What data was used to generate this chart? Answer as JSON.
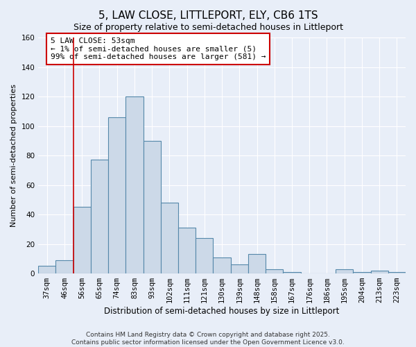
{
  "title": "5, LAW CLOSE, LITTLEPORT, ELY, CB6 1TS",
  "subtitle": "Size of property relative to semi-detached houses in Littleport",
  "xlabel": "Distribution of semi-detached houses by size in Littleport",
  "ylabel": "Number of semi-detached properties",
  "categories": [
    "37sqm",
    "46sqm",
    "56sqm",
    "65sqm",
    "74sqm",
    "83sqm",
    "93sqm",
    "102sqm",
    "111sqm",
    "121sqm",
    "130sqm",
    "139sqm",
    "148sqm",
    "158sqm",
    "167sqm",
    "176sqm",
    "186sqm",
    "195sqm",
    "204sqm",
    "213sqm",
    "223sqm"
  ],
  "values": [
    5,
    9,
    45,
    77,
    106,
    120,
    90,
    48,
    31,
    24,
    11,
    6,
    13,
    3,
    1,
    0,
    0,
    3,
    1,
    2,
    1
  ],
  "bar_color": "#ccd9e8",
  "bar_edge_color": "#5588aa",
  "vline_x_index": 1.5,
  "vline_color": "#cc0000",
  "annotation_text": "5 LAW CLOSE: 53sqm\n← 1% of semi-detached houses are smaller (5)\n99% of semi-detached houses are larger (581) →",
  "annotation_box_color": "#ffffff",
  "annotation_box_edge": "#cc0000",
  "ylim": [
    0,
    160
  ],
  "yticks": [
    0,
    20,
    40,
    60,
    80,
    100,
    120,
    140,
    160
  ],
  "background_color": "#e8eef8",
  "plot_bg_color": "#e8eef8",
  "grid_color": "#ffffff",
  "footer_line1": "Contains HM Land Registry data © Crown copyright and database right 2025.",
  "footer_line2": "Contains public sector information licensed under the Open Government Licence v3.0.",
  "title_fontsize": 11,
  "subtitle_fontsize": 9,
  "xlabel_fontsize": 8.5,
  "ylabel_fontsize": 8,
  "tick_fontsize": 7.5,
  "annotation_fontsize": 8,
  "footer_fontsize": 6.5
}
